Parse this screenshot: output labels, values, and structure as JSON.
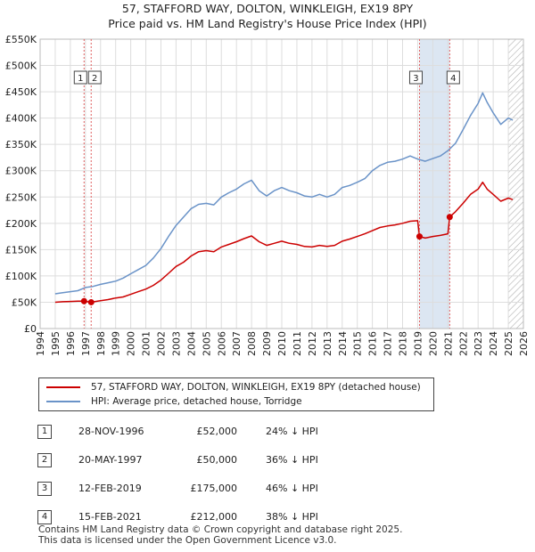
{
  "title_line1": "57, STAFFORD WAY, DOLTON, WINKLEIGH, EX19 8PY",
  "title_line2": "Price paid vs. HM Land Registry's House Price Index (HPI)",
  "legend": {
    "red_label": "57, STAFFORD WAY, DOLTON, WINKLEIGH, EX19 8PY (detached house)",
    "blue_label": "HPI: Average price, detached house, Torridge"
  },
  "transactions": [
    {
      "num": "1",
      "date": "28-NOV-1996",
      "price": "£52,000",
      "hpi": "24% ↓ HPI"
    },
    {
      "num": "2",
      "date": "20-MAY-1997",
      "price": "£50,000",
      "hpi": "36% ↓ HPI"
    },
    {
      "num": "3",
      "date": "12-FEB-2019",
      "price": "£175,000",
      "hpi": "46% ↓ HPI"
    },
    {
      "num": "4",
      "date": "15-FEB-2021",
      "price": "£212,000",
      "hpi": "38% ↓ HPI"
    }
  ],
  "footer": {
    "line1": "Contains HM Land Registry data © Crown copyright and database right 2025.",
    "line2": "This data is licensed under the Open Government Licence v3.0."
  },
  "colors": {
    "price_paid": "#cc0000",
    "hpi": "#6a93c8",
    "shade": "#dce6f2",
    "marker_line": "#e06060"
  },
  "chart_data": {
    "type": "line",
    "xlim": [
      1994,
      2026
    ],
    "ylim": [
      0,
      550000
    ],
    "x_ticks": [
      "1994",
      "1995",
      "1996",
      "1997",
      "1998",
      "1999",
      "2000",
      "2001",
      "2002",
      "2003",
      "2004",
      "2005",
      "2006",
      "2007",
      "2008",
      "2009",
      "2010",
      "2011",
      "2012",
      "2013",
      "2014",
      "2015",
      "2016",
      "2017",
      "2018",
      "2019",
      "2020",
      "2021",
      "2022",
      "2023",
      "2024",
      "2025",
      "2026"
    ],
    "y_ticks": [
      {
        "value": 0,
        "label": "£0"
      },
      {
        "value": 50000,
        "label": "£50K"
      },
      {
        "value": 100000,
        "label": "£100K"
      },
      {
        "value": 150000,
        "label": "£150K"
      },
      {
        "value": 200000,
        "label": "£200K"
      },
      {
        "value": 250000,
        "label": "£250K"
      },
      {
        "value": 300000,
        "label": "£300K"
      },
      {
        "value": 350000,
        "label": "£350K"
      },
      {
        "value": 400000,
        "label": "£400K"
      },
      {
        "value": 450000,
        "label": "£450K"
      },
      {
        "value": 500000,
        "label": "£500K"
      },
      {
        "value": 550000,
        "label": "£550K"
      }
    ],
    "shaded_range": [
      2019.12,
      2021.12
    ],
    "hatched_from": 2025.0,
    "series": [
      {
        "name": "HPI: Average price, detached house, Torridge",
        "x": [
          1995,
          1995.5,
          1996,
          1996.5,
          1997,
          1997.5,
          1998,
          1998.5,
          1999,
          1999.5,
          2000,
          2000.5,
          2001,
          2001.5,
          2002,
          2002.5,
          2003,
          2003.5,
          2004,
          2004.5,
          2005,
          2005.5,
          2006,
          2006.5,
          2007,
          2007.5,
          2008,
          2008.5,
          2009,
          2009.5,
          2010,
          2010.5,
          2011,
          2011.5,
          2012,
          2012.5,
          2013,
          2013.5,
          2014,
          2014.5,
          2015,
          2015.5,
          2016,
          2016.5,
          2017,
          2017.5,
          2018,
          2018.5,
          2019,
          2019.5,
          2020,
          2020.5,
          2021,
          2021.5,
          2022,
          2022.5,
          2023,
          2023.3,
          2023.6,
          2024,
          2024.5,
          2025,
          2025.3
        ],
        "y": [
          66000,
          68000,
          70000,
          72000,
          78000,
          80000,
          84000,
          87000,
          90000,
          96000,
          104000,
          112000,
          120000,
          134000,
          152000,
          175000,
          196000,
          212000,
          228000,
          236000,
          238000,
          235000,
          250000,
          258000,
          265000,
          275000,
          282000,
          262000,
          252000,
          262000,
          268000,
          262000,
          258000,
          252000,
          250000,
          255000,
          250000,
          255000,
          268000,
          272000,
          278000,
          285000,
          300000,
          310000,
          316000,
          318000,
          322000,
          328000,
          322000,
          318000,
          323000,
          328000,
          338000,
          352000,
          378000,
          405000,
          428000,
          448000,
          430000,
          410000,
          388000,
          400000,
          396000
        ]
      },
      {
        "name": "57, STAFFORD WAY, DOLTON, WINKLEIGH, EX19 8PY (detached house)",
        "x": [
          1995,
          1995.5,
          1996,
          1996.5,
          1996.9,
          1997.38,
          1997.8,
          1998.5,
          1999,
          1999.5,
          2000,
          2000.5,
          2001,
          2001.5,
          2002,
          2002.5,
          2003,
          2003.5,
          2004,
          2004.5,
          2005,
          2005.5,
          2006,
          2006.5,
          2007,
          2007.5,
          2008,
          2008.5,
          2009,
          2009.5,
          2010,
          2010.5,
          2011,
          2011.5,
          2012,
          2012.5,
          2013,
          2013.5,
          2014,
          2014.5,
          2015,
          2015.5,
          2016,
          2016.5,
          2017,
          2017.5,
          2018,
          2018.5,
          2019.0,
          2019.12,
          2019.5,
          2020,
          2020.5,
          2021.0,
          2021.12,
          2021.5,
          2022,
          2022.5,
          2023,
          2023.3,
          2023.6,
          2024,
          2024.5,
          2025,
          2025.3
        ],
        "y": [
          50000,
          51000,
          51500,
          52000,
          52000,
          50000,
          52000,
          55000,
          58000,
          60000,
          65000,
          70000,
          75000,
          82000,
          92000,
          105000,
          118000,
          126000,
          138000,
          146000,
          148000,
          146000,
          155000,
          160000,
          165000,
          171000,
          176000,
          165000,
          158000,
          162000,
          166000,
          162000,
          160000,
          156000,
          155000,
          158000,
          156000,
          158000,
          166000,
          170000,
          175000,
          180000,
          186000,
          192000,
          195000,
          197000,
          200000,
          204000,
          205000,
          175000,
          172000,
          175000,
          177000,
          180000,
          212000,
          222000,
          238000,
          255000,
          265000,
          278000,
          265000,
          255000,
          242000,
          248000,
          245000
        ]
      }
    ],
    "sales": [
      {
        "label": "1",
        "x": 1996.91,
        "y": 52000
      },
      {
        "label": "2",
        "x": 1997.38,
        "y": 50000
      },
      {
        "label": "3",
        "x": 2019.12,
        "y": 175000
      },
      {
        "label": "4",
        "x": 2021.12,
        "y": 212000
      }
    ]
  }
}
